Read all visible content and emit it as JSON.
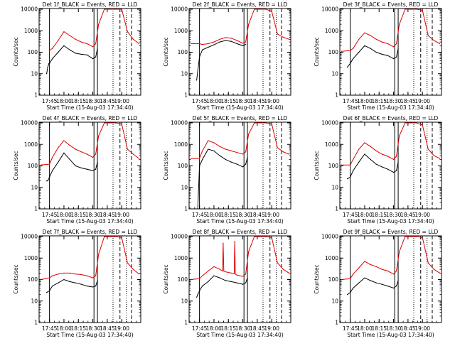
{
  "figure": {
    "x_ticks": [
      "17:45",
      "18:00",
      "18:15",
      "18:30",
      "18:45",
      "19:00"
    ],
    "y_ticks": [
      "1",
      "10",
      "100",
      "1000",
      "10000"
    ],
    "ylabel": "Counts/sec",
    "xlabel": "Start Time (15-Aug-03 17:34:40)",
    "colors": {
      "events": "#000000",
      "lld": "#e00000"
    }
  },
  "chart_data": [
    {
      "type": "line",
      "title": "Det 1f_BLACK = Events, RED = LLD",
      "xlim": [
        17.57,
        19.33
      ],
      "ylim": [
        1,
        10000
      ],
      "yscale": "log",
      "xlabel": "Start Time (15-Aug-03 17:34:40)",
      "ylabel": "Counts/sec",
      "vlines": {
        "solid": [
          17.75,
          18.52,
          18.58
        ],
        "dotted": [
          18.85,
          19.08
        ],
        "dashed": [
          18.97,
          19.17
        ]
      },
      "series": [
        {
          "name": "Events",
          "x": [
            17.7,
            17.72,
            17.74,
            17.75,
            17.8,
            17.9,
            18.0,
            18.1,
            18.2,
            18.3,
            18.4,
            18.5,
            18.55,
            18.58
          ],
          "y": [
            10,
            20,
            30,
            30,
            50,
            100,
            200,
            130,
            90,
            80,
            75,
            50,
            60,
            150
          ]
        },
        {
          "name": "LLD",
          "x": [
            17.75,
            17.8,
            17.9,
            18.0,
            18.1,
            18.2,
            18.3,
            18.4,
            18.5,
            18.55,
            18.6,
            18.7,
            18.8,
            18.9,
            19.0,
            19.1,
            19.2,
            19.3
          ],
          "y": [
            120,
            150,
            350,
            900,
            600,
            400,
            300,
            250,
            180,
            250,
            2000,
            10000,
            10000,
            10000,
            10000,
            900,
            400,
            250
          ]
        }
      ]
    },
    {
      "type": "line",
      "title": "Det 2f_BLACK = Events, RED = LLD",
      "xlim": [
        17.57,
        19.33
      ],
      "ylim": [
        1,
        10000
      ],
      "yscale": "log",
      "xlabel": "Start Time (15-Aug-03 17:34:40)",
      "ylabel": "Counts/sec",
      "vlines": {
        "solid": [
          17.75,
          18.52,
          18.58
        ],
        "dotted": [
          18.85,
          19.08
        ],
        "dashed": [
          18.97,
          19.17
        ]
      },
      "series": [
        {
          "name": "Events",
          "x": [
            17.7,
            17.75,
            17.8,
            17.9,
            18.0,
            18.1,
            18.2,
            18.3,
            18.4,
            18.5,
            18.55
          ],
          "y": [
            5,
            60,
            130,
            170,
            220,
            300,
            350,
            320,
            250,
            200,
            230
          ]
        },
        {
          "name": "LLD",
          "x": [
            17.6,
            17.75,
            17.8,
            17.9,
            18.0,
            18.1,
            18.2,
            18.3,
            18.4,
            18.5,
            18.55,
            18.6,
            18.7,
            18.8,
            18.9,
            19.0,
            19.1,
            19.2,
            19.3
          ],
          "y": [
            250,
            250,
            230,
            250,
            300,
            400,
            480,
            450,
            350,
            260,
            300,
            2000,
            10000,
            10000,
            10000,
            8000,
            700,
            500,
            400
          ]
        }
      ]
    },
    {
      "type": "line",
      "title": "Det 3f_BLACK = Events, RED = LLD",
      "xlim": [
        17.57,
        19.33
      ],
      "ylim": [
        1,
        10000
      ],
      "yscale": "log",
      "xlabel": "Start Time (15-Aug-03 17:34:40)",
      "ylabel": "Counts/sec",
      "vlines": {
        "solid": [
          17.75,
          18.52,
          18.58
        ],
        "dotted": [
          18.85,
          19.08
        ],
        "dashed": [
          18.97,
          19.17
        ]
      },
      "series": [
        {
          "name": "Events",
          "x": [
            17.7,
            17.75,
            17.8,
            17.9,
            18.0,
            18.1,
            18.2,
            18.3,
            18.4,
            18.5,
            18.55,
            18.58
          ],
          "y": [
            20,
            30,
            50,
            100,
            200,
            150,
            100,
            80,
            70,
            50,
            60,
            150
          ]
        },
        {
          "name": "LLD",
          "x": [
            17.6,
            17.75,
            17.8,
            17.9,
            18.0,
            18.1,
            18.2,
            18.3,
            18.4,
            18.5,
            18.55,
            18.6,
            18.7,
            18.8,
            18.9,
            19.0,
            19.1,
            19.2,
            19.3
          ],
          "y": [
            110,
            120,
            150,
            400,
            800,
            600,
            400,
            300,
            250,
            180,
            250,
            2000,
            10000,
            10000,
            10000,
            9000,
            600,
            350,
            250
          ]
        }
      ]
    },
    {
      "type": "line",
      "title": "Det 4f_BLACK = Events, RED = LLD",
      "xlim": [
        17.57,
        19.33
      ],
      "ylim": [
        1,
        10000
      ],
      "yscale": "log",
      "xlabel": "Start Time (15-Aug-03 17:34:40)",
      "ylabel": "Counts/sec",
      "vlines": {
        "solid": [
          17.75,
          18.52,
          18.58
        ],
        "dotted": [
          18.85,
          19.08
        ],
        "dashed": [
          18.97,
          19.17
        ]
      },
      "series": [
        {
          "name": "Events",
          "x": [
            17.7,
            17.72,
            17.75,
            17.8,
            17.9,
            18.0,
            18.1,
            18.2,
            18.3,
            18.4,
            18.5,
            18.55,
            18.58
          ],
          "y": [
            20,
            20,
            30,
            60,
            150,
            400,
            200,
            100,
            80,
            70,
            60,
            70,
            150
          ]
        },
        {
          "name": "LLD",
          "x": [
            17.6,
            17.75,
            17.8,
            17.9,
            18.0,
            18.1,
            18.2,
            18.3,
            18.4,
            18.5,
            18.55,
            18.6,
            18.7,
            18.8,
            18.9,
            19.0,
            19.1,
            19.2,
            19.3
          ],
          "y": [
            110,
            120,
            250,
            700,
            1500,
            900,
            600,
            450,
            350,
            250,
            350,
            2500,
            10000,
            10000,
            10000,
            9000,
            600,
            350,
            220
          ]
        }
      ]
    },
    {
      "type": "line",
      "title": "Det 5f_BLACK = Events, RED = LLD",
      "xlim": [
        17.57,
        19.33
      ],
      "ylim": [
        1,
        10000
      ],
      "yscale": "log",
      "xlabel": "Start Time (15-Aug-03 17:34:40)",
      "ylabel": "Counts/sec",
      "vlines": {
        "solid": [
          17.75,
          18.52,
          18.58
        ],
        "dotted": [
          18.85,
          19.08
        ],
        "dashed": [
          18.97,
          19.17
        ]
      },
      "series": [
        {
          "name": "Events",
          "x": [
            17.72,
            17.75,
            17.8,
            17.9,
            18.0,
            18.1,
            18.2,
            18.3,
            18.4,
            18.5,
            18.55,
            18.58
          ],
          "y": [
            1,
            100,
            200,
            600,
            500,
            300,
            200,
            150,
            120,
            90,
            120,
            250
          ]
        },
        {
          "name": "LLD",
          "x": [
            17.6,
            17.75,
            17.8,
            17.9,
            18.0,
            18.1,
            18.2,
            18.3,
            18.4,
            18.5,
            18.55,
            18.6,
            18.7,
            18.8,
            18.9,
            19.0,
            19.1,
            19.2,
            19.3
          ],
          "y": [
            220,
            220,
            500,
            1500,
            1200,
            800,
            600,
            500,
            420,
            350,
            450,
            3000,
            10000,
            10000,
            10000,
            9000,
            700,
            450,
            350
          ]
        }
      ]
    },
    {
      "type": "line",
      "title": "Det 6f_BLACK = Events, RED = LLD",
      "xlim": [
        17.57,
        19.33
      ],
      "ylim": [
        1,
        10000
      ],
      "yscale": "log",
      "xlabel": "Start Time (15-Aug-03 17:34:40)",
      "ylabel": "Counts/sec",
      "vlines": {
        "solid": [
          17.75,
          18.52,
          18.58
        ],
        "dotted": [
          18.85,
          19.08
        ],
        "dashed": [
          18.97,
          19.17
        ]
      },
      "series": [
        {
          "name": "Events",
          "x": [
            17.7,
            17.75,
            17.8,
            17.9,
            18.0,
            18.1,
            18.2,
            18.3,
            18.4,
            18.5,
            18.55,
            18.58
          ],
          "y": [
            25,
            30,
            60,
            150,
            350,
            200,
            120,
            90,
            70,
            50,
            60,
            150
          ]
        },
        {
          "name": "LLD",
          "x": [
            17.6,
            17.75,
            17.8,
            17.9,
            18.0,
            18.1,
            18.2,
            18.3,
            18.4,
            18.5,
            18.55,
            18.6,
            18.7,
            18.8,
            18.9,
            19.0,
            19.1,
            19.2,
            19.3
          ],
          "y": [
            110,
            110,
            200,
            600,
            1200,
            800,
            500,
            350,
            280,
            200,
            280,
            2500,
            10000,
            10000,
            10000,
            8000,
            600,
            300,
            220
          ]
        }
      ]
    },
    {
      "type": "line",
      "title": "Det 7f_BLACK = Events, RED = LLD",
      "xlim": [
        17.57,
        19.33
      ],
      "ylim": [
        1,
        10000
      ],
      "yscale": "log",
      "xlabel": "Start Time (15-Aug-03 17:34:40)",
      "ylabel": "Counts/sec",
      "vlines": {
        "solid": [
          17.75,
          18.52,
          18.58
        ],
        "dotted": [
          18.85,
          19.08
        ],
        "dashed": [
          18.97,
          19.17
        ]
      },
      "series": [
        {
          "name": "Events",
          "x": [
            17.7,
            17.75,
            17.8,
            17.9,
            18.0,
            18.1,
            18.2,
            18.3,
            18.4,
            18.5,
            18.55,
            18.58
          ],
          "y": [
            25,
            30,
            50,
            70,
            100,
            80,
            70,
            60,
            50,
            45,
            50,
            90
          ]
        },
        {
          "name": "LLD",
          "x": [
            17.6,
            17.75,
            17.8,
            17.9,
            18.0,
            18.1,
            18.2,
            18.3,
            18.4,
            18.5,
            18.55,
            18.6,
            18.7,
            18.8,
            18.9,
            19.0,
            19.1,
            19.2,
            19.3
          ],
          "y": [
            100,
            120,
            150,
            180,
            200,
            200,
            180,
            170,
            150,
            120,
            150,
            1500,
            10000,
            10000,
            10000,
            9000,
            600,
            300,
            180
          ]
        }
      ]
    },
    {
      "type": "line",
      "title": "Det 8f_BLACK = Events, RED = LLD",
      "xlim": [
        17.57,
        19.33
      ],
      "ylim": [
        1,
        10000
      ],
      "yscale": "log",
      "xlabel": "Start Time (15-Aug-03 17:34:40)",
      "ylabel": "Counts/sec",
      "vlines": {
        "solid": [
          17.75,
          18.52,
          18.58
        ],
        "dotted": [
          18.85,
          19.08
        ],
        "dashed": [
          18.97,
          19.17
        ]
      },
      "series": [
        {
          "name": "Events",
          "x": [
            17.7,
            17.72,
            17.75,
            17.8,
            17.9,
            18.0,
            18.1,
            18.2,
            18.3,
            18.4,
            18.5,
            18.55,
            18.58
          ],
          "y": [
            15,
            20,
            30,
            50,
            80,
            150,
            120,
            90,
            80,
            70,
            60,
            70,
            120
          ]
        },
        {
          "name": "LLD",
          "x": [
            17.6,
            17.75,
            17.8,
            17.9,
            18.0,
            18.1,
            18.15,
            18.16,
            18.17,
            18.2,
            18.3,
            18.35,
            18.36,
            18.37,
            18.4,
            18.5,
            18.55,
            18.6,
            18.7,
            18.8,
            18.9,
            19.0,
            19.1,
            19.2,
            19.3
          ],
          "y": [
            100,
            110,
            150,
            250,
            400,
            300,
            250,
            5000,
            250,
            230,
            200,
            190,
            6000,
            180,
            160,
            140,
            180,
            2000,
            10000,
            10000,
            10000,
            9000,
            600,
            300,
            200
          ]
        }
      ]
    },
    {
      "type": "line",
      "title": "Det 9f_BLACK = Events, RED = LLD",
      "xlim": [
        17.57,
        19.33
      ],
      "ylim": [
        1,
        10000
      ],
      "yscale": "log",
      "xlabel": "Start Time (15-Aug-03 17:34:40)",
      "ylabel": "Counts/sec",
      "vlines": {
        "solid": [
          17.75,
          18.52,
          18.58
        ],
        "dotted": [
          18.85,
          19.08
        ],
        "dashed": [
          18.97,
          19.17
        ]
      },
      "series": [
        {
          "name": "Events",
          "x": [
            17.7,
            17.75,
            17.8,
            17.9,
            18.0,
            18.1,
            18.2,
            18.3,
            18.4,
            18.5,
            18.55,
            18.58
          ],
          "y": [
            20,
            25,
            40,
            70,
            120,
            90,
            70,
            60,
            50,
            40,
            50,
            90
          ]
        },
        {
          "name": "LLD",
          "x": [
            17.6,
            17.75,
            17.8,
            17.9,
            18.0,
            18.1,
            18.2,
            18.3,
            18.4,
            18.5,
            18.55,
            18.6,
            18.7,
            18.8,
            18.9,
            19.0,
            19.1,
            19.2,
            19.3
          ],
          "y": [
            100,
            110,
            180,
            350,
            700,
            500,
            400,
            300,
            250,
            180,
            250,
            2000,
            10000,
            10000,
            10000,
            9000,
            600,
            300,
            200
          ]
        }
      ]
    }
  ]
}
